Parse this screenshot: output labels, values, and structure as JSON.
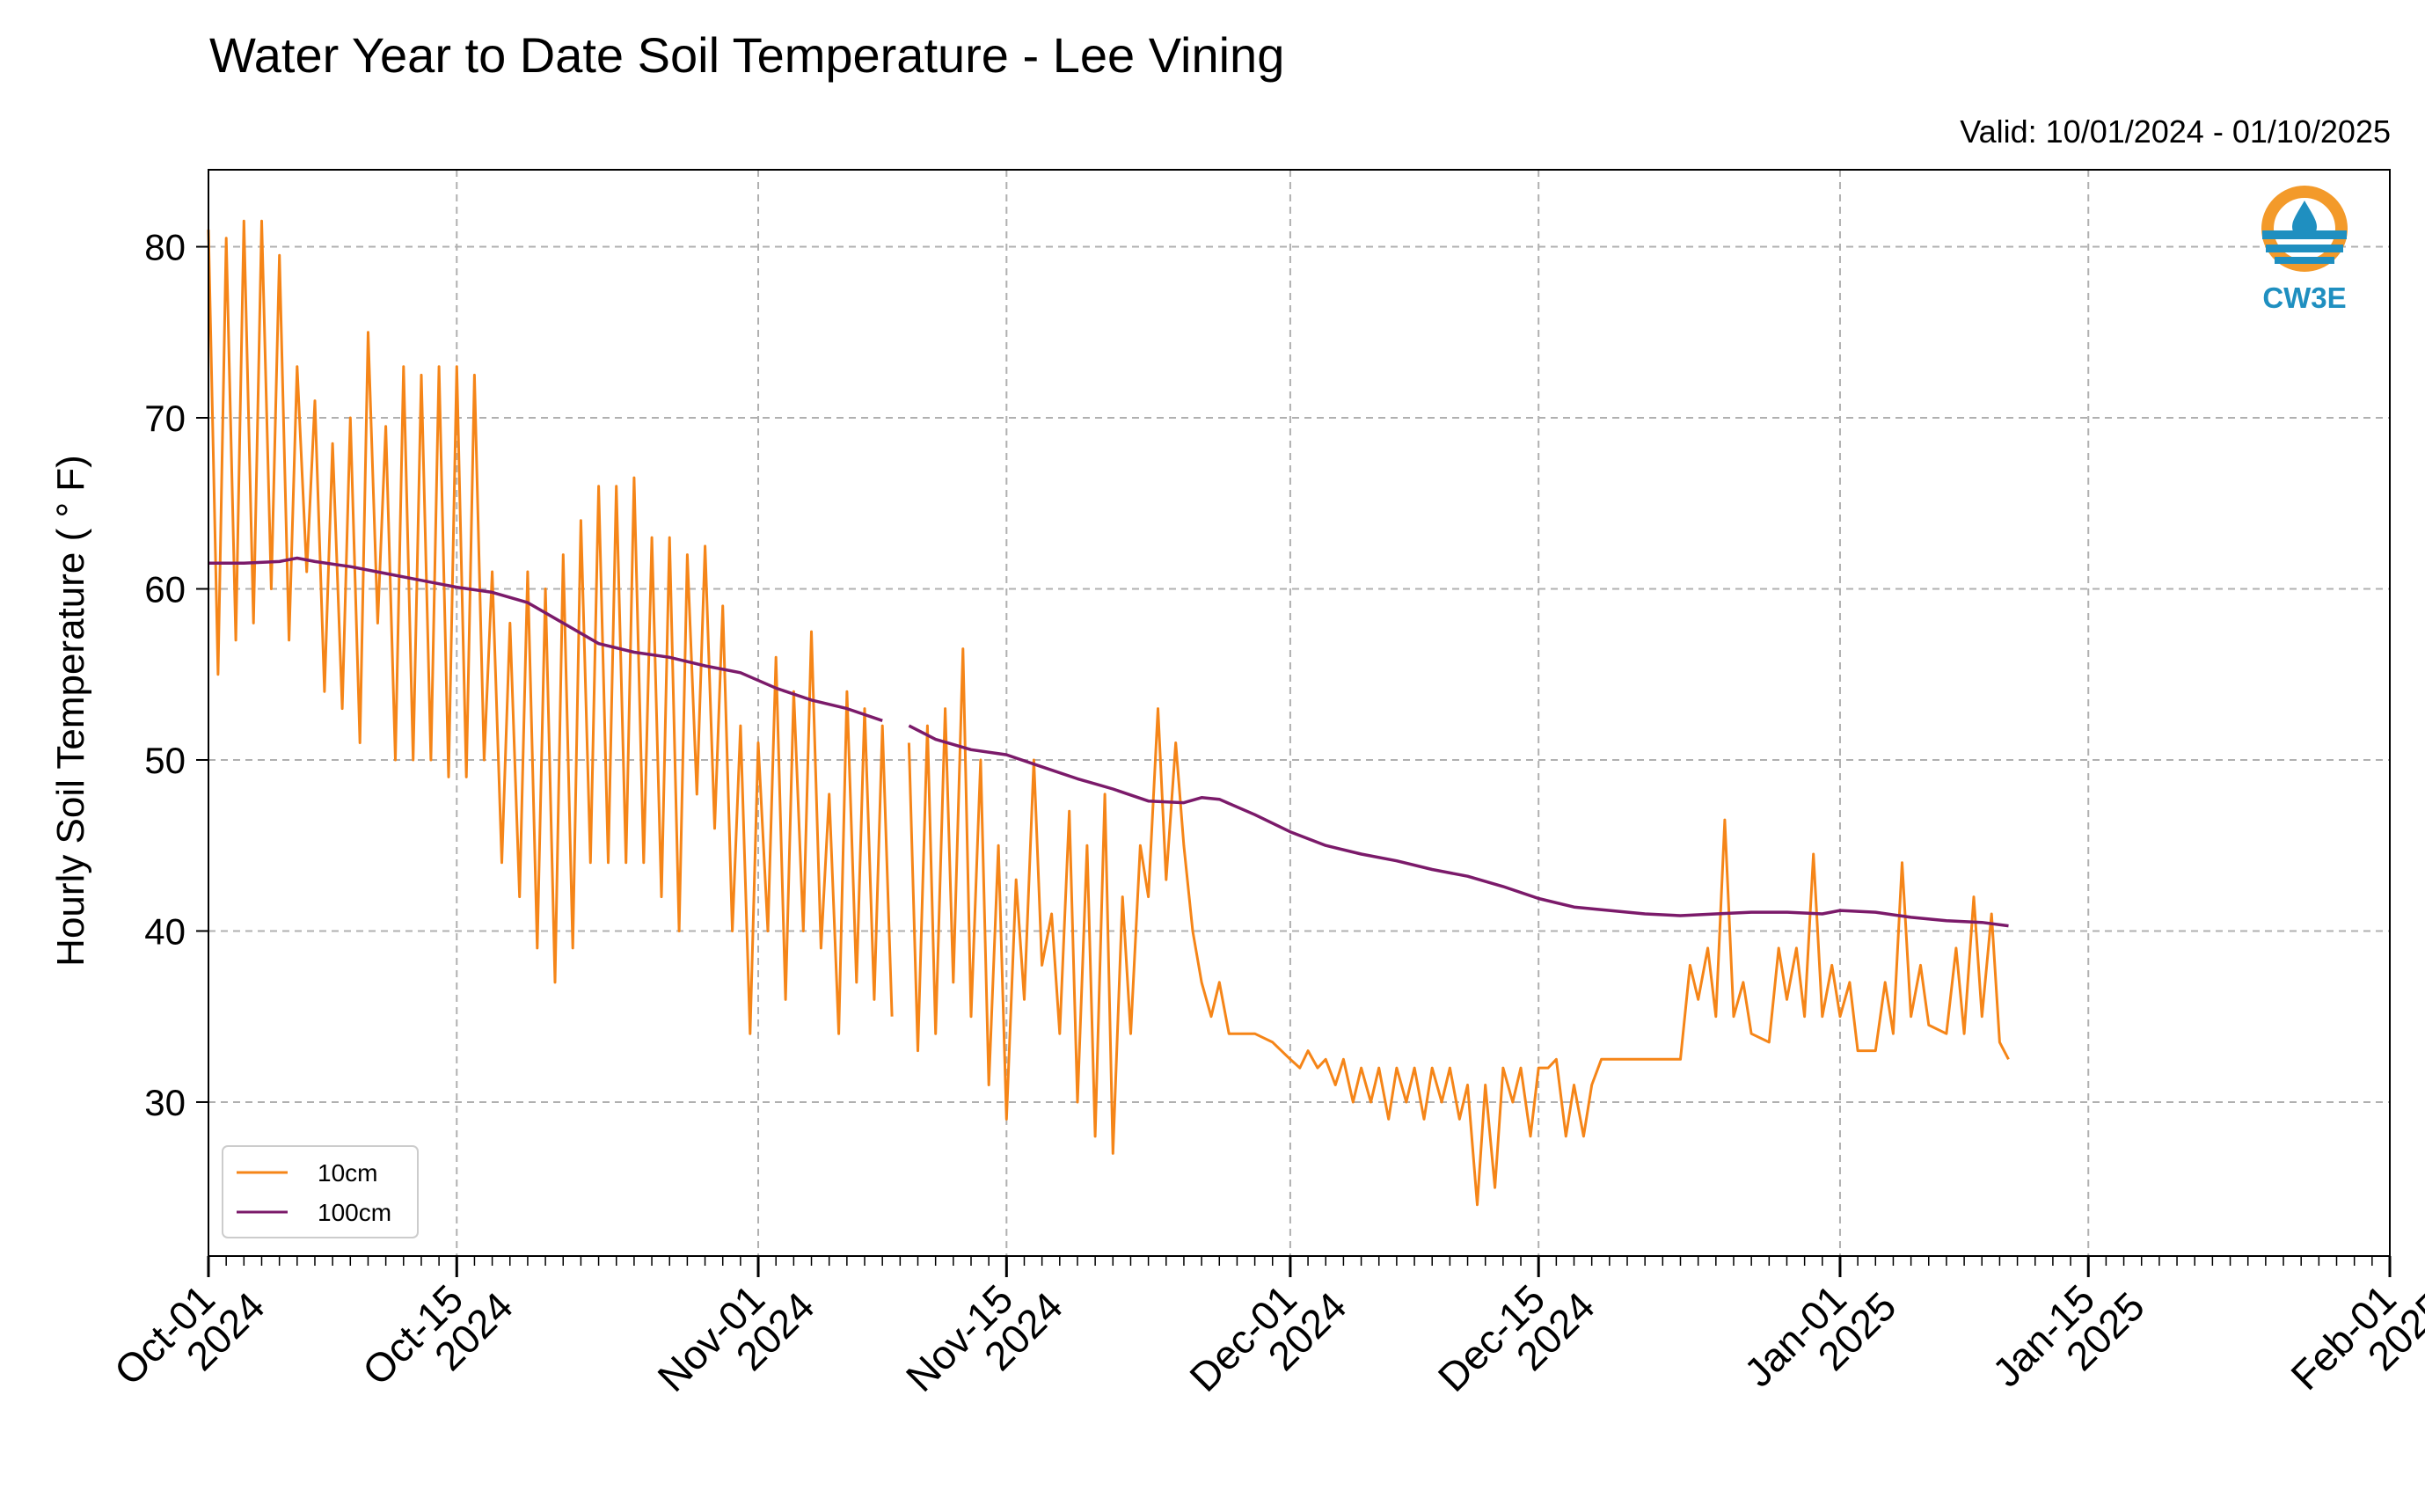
{
  "chart_data": {
    "type": "line",
    "title": "Water Year to Date Soil Temperature - Lee Vining",
    "subtitle": "Valid: 10/01/2024 - 01/10/2025",
    "ylabel": "Hourly Soil Temperature ( ° F)",
    "xlabel": "",
    "xlim": [
      "2024-10-01",
      "2025-02-01"
    ],
    "ylim": [
      21,
      84.5
    ],
    "yticks": [
      30,
      40,
      50,
      60,
      70,
      80
    ],
    "xticks": [
      {
        "date": "2024-10-01",
        "label": [
          "Oct-01",
          "2024"
        ]
      },
      {
        "date": "2024-10-15",
        "label": [
          "Oct-15",
          "2024"
        ]
      },
      {
        "date": "2024-11-01",
        "label": [
          "Nov-01",
          "2024"
        ]
      },
      {
        "date": "2024-11-15",
        "label": [
          "Nov-15",
          "2024"
        ]
      },
      {
        "date": "2024-12-01",
        "label": [
          "Dec-01",
          "2024"
        ]
      },
      {
        "date": "2024-12-15",
        "label": [
          "Dec-15",
          "2024"
        ]
      },
      {
        "date": "2025-01-01",
        "label": [
          "Jan-01",
          "2025"
        ]
      },
      {
        "date": "2025-01-15",
        "label": [
          "Jan-15",
          "2025"
        ]
      },
      {
        "date": "2025-02-01",
        "label": [
          "Feb-01",
          "2025"
        ]
      }
    ],
    "grid": true,
    "legend_position": "bottom-left",
    "series": [
      {
        "name": "10cm",
        "color": "#f58518",
        "points": [
          [
            "2024-10-01T00",
            81
          ],
          [
            "2024-10-01T13",
            55
          ],
          [
            "2024-10-02T00",
            80.5
          ],
          [
            "2024-10-02T13",
            57
          ],
          [
            "2024-10-03T00",
            81.5
          ],
          [
            "2024-10-03T13",
            58
          ],
          [
            "2024-10-04T00",
            81.5
          ],
          [
            "2024-10-04T13",
            60
          ],
          [
            "2024-10-05T00",
            79.5
          ],
          [
            "2024-10-05T13",
            57
          ],
          [
            "2024-10-06T00",
            73
          ],
          [
            "2024-10-06T13",
            61
          ],
          [
            "2024-10-07T00",
            71
          ],
          [
            "2024-10-07T13",
            54
          ],
          [
            "2024-10-08T00",
            68.5
          ],
          [
            "2024-10-08T13",
            53
          ],
          [
            "2024-10-09T00",
            70
          ],
          [
            "2024-10-09T13",
            51
          ],
          [
            "2024-10-10T00",
            75
          ],
          [
            "2024-10-10T13",
            58
          ],
          [
            "2024-10-11T00",
            69.5
          ],
          [
            "2024-10-11T13",
            50
          ],
          [
            "2024-10-12T00",
            73
          ],
          [
            "2024-10-12T13",
            50
          ],
          [
            "2024-10-13T00",
            72.5
          ],
          [
            "2024-10-13T13",
            50
          ],
          [
            "2024-10-14T00",
            73
          ],
          [
            "2024-10-14T13",
            49
          ],
          [
            "2024-10-15T00",
            73
          ],
          [
            "2024-10-15T13",
            49
          ],
          [
            "2024-10-16T00",
            72.5
          ],
          [
            "2024-10-16T13",
            50
          ],
          [
            "2024-10-17T00",
            61
          ],
          [
            "2024-10-17T13",
            44
          ],
          [
            "2024-10-18T00",
            58
          ],
          [
            "2024-10-18T13",
            42
          ],
          [
            "2024-10-19T00",
            61
          ],
          [
            "2024-10-19T13",
            39
          ],
          [
            "2024-10-20T00",
            60
          ],
          [
            "2024-10-20T13",
            37
          ],
          [
            "2024-10-21T00",
            62
          ],
          [
            "2024-10-21T13",
            39
          ],
          [
            "2024-10-22T00",
            64
          ],
          [
            "2024-10-22T13",
            44
          ],
          [
            "2024-10-23T00",
            66
          ],
          [
            "2024-10-23T13",
            44
          ],
          [
            "2024-10-24T00",
            66
          ],
          [
            "2024-10-24T13",
            44
          ],
          [
            "2024-10-25T00",
            66.5
          ],
          [
            "2024-10-25T13",
            44
          ],
          [
            "2024-10-26T00",
            63
          ],
          [
            "2024-10-26T13",
            42
          ],
          [
            "2024-10-27T00",
            63
          ],
          [
            "2024-10-27T13",
            40
          ],
          [
            "2024-10-28T00",
            62
          ],
          [
            "2024-10-28T13",
            48
          ],
          [
            "2024-10-29T00",
            62.5
          ],
          [
            "2024-10-29T13",
            46
          ],
          [
            "2024-10-30T00",
            59
          ],
          [
            "2024-10-30T13",
            40
          ],
          [
            "2024-10-31T00",
            52
          ],
          [
            "2024-10-31T13",
            34
          ],
          [
            "2024-11-01T00",
            51
          ],
          [
            "2024-11-01T13",
            40
          ],
          [
            "2024-11-02T00",
            56
          ],
          [
            "2024-11-02T13",
            36
          ],
          [
            "2024-11-03T00",
            54
          ],
          [
            "2024-11-03T13",
            40
          ],
          [
            "2024-11-04T00",
            57.5
          ],
          [
            "2024-11-04T13",
            39
          ],
          [
            "2024-11-05T00",
            48
          ],
          [
            "2024-11-05T13",
            34
          ],
          [
            "2024-11-06T00",
            54
          ],
          [
            "2024-11-06T13",
            37
          ],
          [
            "2024-11-07T00",
            53
          ],
          [
            "2024-11-07T13",
            36
          ],
          [
            "2024-11-08T00",
            52
          ],
          [
            "2024-11-08T13",
            35
          ],
          null,
          [
            "2024-11-09T12",
            51
          ],
          [
            "2024-11-10T00",
            33
          ],
          [
            "2024-11-10T13",
            52
          ],
          [
            "2024-11-11T00",
            34
          ],
          [
            "2024-11-11T13",
            53
          ],
          [
            "2024-11-12T00",
            37
          ],
          [
            "2024-11-12T13",
            56.5
          ],
          [
            "2024-11-13T00",
            35
          ],
          [
            "2024-11-13T13",
            50
          ],
          [
            "2024-11-14T00",
            31
          ],
          [
            "2024-11-14T13",
            45
          ],
          [
            "2024-11-15T00",
            29
          ],
          [
            "2024-11-15T13",
            43
          ],
          [
            "2024-11-16T00",
            36
          ],
          [
            "2024-11-16T13",
            50
          ],
          [
            "2024-11-17T00",
            38
          ],
          [
            "2024-11-17T13",
            41
          ],
          [
            "2024-11-18T00",
            34
          ],
          [
            "2024-11-18T13",
            47
          ],
          [
            "2024-11-19T00",
            30
          ],
          [
            "2024-11-19T13",
            45
          ],
          [
            "2024-11-20T00",
            28
          ],
          [
            "2024-11-20T13",
            48
          ],
          [
            "2024-11-21T00",
            27
          ],
          [
            "2024-11-21T13",
            42
          ],
          [
            "2024-11-22T00",
            34
          ],
          [
            "2024-11-22T13",
            45
          ],
          [
            "2024-11-23T00",
            42
          ],
          [
            "2024-11-23T13",
            53
          ],
          [
            "2024-11-24T00",
            43
          ],
          [
            "2024-11-24T13",
            51
          ],
          [
            "2024-11-25T00",
            45
          ],
          [
            "2024-11-25T12",
            40
          ],
          [
            "2024-11-26T00",
            37
          ],
          [
            "2024-11-26T13",
            35
          ],
          [
            "2024-11-27T00",
            37
          ],
          [
            "2024-11-27T13",
            34
          ],
          [
            "2024-11-28T00",
            34
          ],
          [
            "2024-11-29T00",
            34
          ],
          [
            "2024-11-30T00",
            33.5
          ],
          [
            "2024-12-01T00",
            32.5
          ],
          [
            "2024-12-01T13",
            32
          ],
          [
            "2024-12-02T00",
            33
          ],
          [
            "2024-12-02T13",
            32
          ],
          [
            "2024-12-03T00",
            32.5
          ],
          [
            "2024-12-03T13",
            31
          ],
          [
            "2024-12-04T00",
            32.5
          ],
          [
            "2024-12-04T13",
            30
          ],
          [
            "2024-12-05T00",
            32
          ],
          [
            "2024-12-05T13",
            30
          ],
          [
            "2024-12-06T00",
            32
          ],
          [
            "2024-12-06T13",
            29
          ],
          [
            "2024-12-07T00",
            32
          ],
          [
            "2024-12-07T13",
            30
          ],
          [
            "2024-12-08T00",
            32
          ],
          [
            "2024-12-08T13",
            29
          ],
          [
            "2024-12-09T00",
            32
          ],
          [
            "2024-12-09T13",
            30
          ],
          [
            "2024-12-10T00",
            32
          ],
          [
            "2024-12-10T13",
            29
          ],
          [
            "2024-12-11T00",
            31
          ],
          [
            "2024-12-11T13",
            24
          ],
          [
            "2024-12-12T00",
            31
          ],
          [
            "2024-12-12T13",
            25
          ],
          [
            "2024-12-13T00",
            32
          ],
          [
            "2024-12-13T13",
            30
          ],
          [
            "2024-12-14T00",
            32
          ],
          [
            "2024-12-14T13",
            28
          ],
          [
            "2024-12-15T00",
            32
          ],
          [
            "2024-12-15T13",
            32
          ],
          [
            "2024-12-16T00",
            32.5
          ],
          [
            "2024-12-16T13",
            28
          ],
          [
            "2024-12-17T00",
            31
          ],
          [
            "2024-12-17T13",
            28
          ],
          [
            "2024-12-18T00",
            31
          ],
          [
            "2024-12-18T13",
            32.5
          ],
          [
            "2024-12-19T00",
            32.5
          ],
          [
            "2024-12-21T00",
            32.5
          ],
          [
            "2024-12-23T00",
            32.5
          ],
          [
            "2024-12-23T13",
            38
          ],
          [
            "2024-12-24T00",
            36
          ],
          [
            "2024-12-24T13",
            39
          ],
          [
            "2024-12-25T00",
            35
          ],
          [
            "2024-12-25T12",
            46.5
          ],
          [
            "2024-12-26T00",
            35
          ],
          [
            "2024-12-26T13",
            37
          ],
          [
            "2024-12-27T00",
            34
          ],
          [
            "2024-12-28T00",
            33.5
          ],
          [
            "2024-12-28T13",
            39
          ],
          [
            "2024-12-29T00",
            36
          ],
          [
            "2024-12-29T13",
            39
          ],
          [
            "2024-12-30T00",
            35
          ],
          [
            "2024-12-30T12",
            44.5
          ],
          [
            "2024-12-31T00",
            35
          ],
          [
            "2024-12-31T13",
            38
          ],
          [
            "2025-01-01T00",
            35
          ],
          [
            "2025-01-01T13",
            37
          ],
          [
            "2025-01-02T00",
            33
          ],
          [
            "2025-01-03T00",
            33
          ],
          [
            "2025-01-03T13",
            37
          ],
          [
            "2025-01-04T00",
            34
          ],
          [
            "2025-01-04T12",
            44
          ],
          [
            "2025-01-05T00",
            35
          ],
          [
            "2025-01-05T13",
            38
          ],
          [
            "2025-01-06T00",
            34.5
          ],
          [
            "2025-01-07T00",
            34
          ],
          [
            "2025-01-07T13",
            39
          ],
          [
            "2025-01-08T00",
            34
          ],
          [
            "2025-01-08T13",
            42
          ],
          [
            "2025-01-09T00",
            35
          ],
          [
            "2025-01-09T13",
            41
          ],
          [
            "2025-01-10T00",
            33.5
          ],
          [
            "2025-01-10T12",
            32.5
          ]
        ]
      },
      {
        "name": "100cm",
        "color": "#7b1a6a",
        "points": [
          [
            "2024-10-01T00",
            61.5
          ],
          [
            "2024-10-03T00",
            61.5
          ],
          [
            "2024-10-05T00",
            61.6
          ],
          [
            "2024-10-06T00",
            61.8
          ],
          [
            "2024-10-07T00",
            61.6
          ],
          [
            "2024-10-09T00",
            61.3
          ],
          [
            "2024-10-11T00",
            60.9
          ],
          [
            "2024-10-13T00",
            60.5
          ],
          [
            "2024-10-15T00",
            60.1
          ],
          [
            "2024-10-17T00",
            59.8
          ],
          [
            "2024-10-19T00",
            59.2
          ],
          [
            "2024-10-21T00",
            58
          ],
          [
            "2024-10-23T00",
            56.8
          ],
          [
            "2024-10-25T00",
            56.3
          ],
          [
            "2024-10-27T00",
            56
          ],
          [
            "2024-10-29T00",
            55.5
          ],
          [
            "2024-10-31T00",
            55.1
          ],
          [
            "2024-11-02T00",
            54.2
          ],
          [
            "2024-11-04T00",
            53.5
          ],
          [
            "2024-11-06T00",
            53
          ],
          [
            "2024-11-08T00",
            52.3
          ],
          null,
          [
            "2024-11-09T12",
            52
          ],
          [
            "2024-11-11T00",
            51.2
          ],
          [
            "2024-11-13T00",
            50.6
          ],
          [
            "2024-11-15T00",
            50.3
          ],
          [
            "2024-11-17T00",
            49.6
          ],
          [
            "2024-11-19T00",
            48.9
          ],
          [
            "2024-11-21T00",
            48.3
          ],
          [
            "2024-11-23T00",
            47.6
          ],
          [
            "2024-11-25T00",
            47.5
          ],
          [
            "2024-11-26T00",
            47.8
          ],
          [
            "2024-11-27T00",
            47.7
          ],
          [
            "2024-11-29T00",
            46.8
          ],
          [
            "2024-12-01T00",
            45.8
          ],
          [
            "2024-12-03T00",
            45
          ],
          [
            "2024-12-05T00",
            44.5
          ],
          [
            "2024-12-07T00",
            44.1
          ],
          [
            "2024-12-09T00",
            43.6
          ],
          [
            "2024-12-11T00",
            43.2
          ],
          [
            "2024-12-13T00",
            42.6
          ],
          [
            "2024-12-15T00",
            41.9
          ],
          [
            "2024-12-17T00",
            41.4
          ],
          [
            "2024-12-19T00",
            41.2
          ],
          [
            "2024-12-21T00",
            41
          ],
          [
            "2024-12-23T00",
            40.9
          ],
          [
            "2024-12-25T00",
            41
          ],
          [
            "2024-12-27T00",
            41.1
          ],
          [
            "2024-12-29T00",
            41.1
          ],
          [
            "2024-12-31T00",
            41
          ],
          [
            "2025-01-01T00",
            41.2
          ],
          [
            "2025-01-03T00",
            41.1
          ],
          [
            "2025-01-05T00",
            40.8
          ],
          [
            "2025-01-07T00",
            40.6
          ],
          [
            "2025-01-09T00",
            40.5
          ],
          [
            "2025-01-10T12",
            40.3
          ]
        ]
      }
    ]
  },
  "logo": {
    "text": "CW3E",
    "colors": {
      "orange": "#f39a2a",
      "blue": "#1f8fc0"
    }
  }
}
